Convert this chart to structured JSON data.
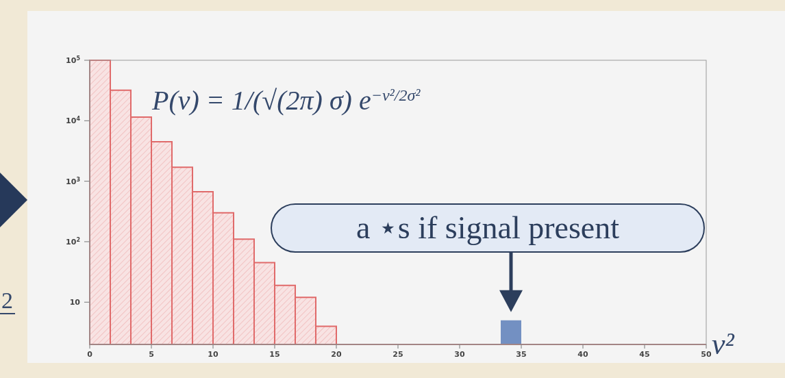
{
  "chart_data": {
    "type": "histogram",
    "xlabel": "v²",
    "log": true,
    "bins": [
      0,
      1.667,
      3.333,
      5,
      6.667,
      8.333,
      10,
      11.667,
      13.333,
      15,
      16.667,
      18.333,
      20,
      21.667,
      23.333,
      25,
      26.667,
      28.333,
      30,
      31.667,
      33.333,
      35,
      36.667,
      38.333,
      40,
      41.667,
      43.333,
      45,
      46.667,
      48.333,
      50
    ],
    "series": [
      {
        "color": "#e06a6a",
        "values": [
          100000,
          32000,
          11500,
          4500,
          1700,
          670,
          300,
          110,
          45,
          19,
          12,
          4,
          null,
          null,
          null,
          null,
          null,
          null,
          null,
          null,
          null,
          null,
          null,
          null,
          null,
          null,
          null,
          null,
          null,
          null
        ]
      },
      {
        "color": "#7390c2",
        "values": [
          null,
          null,
          null,
          null,
          null,
          null,
          null,
          null,
          null,
          null,
          null,
          null,
          null,
          null,
          null,
          null,
          null,
          null,
          null,
          null,
          5,
          null,
          null,
          null,
          null,
          null,
          null,
          null,
          null,
          null
        ]
      }
    ],
    "xlim": [
      0,
      50
    ],
    "xticks": [
      0,
      5,
      10,
      15,
      20,
      25,
      30,
      35,
      40,
      45,
      50
    ],
    "ylim": [
      2,
      100000
    ],
    "yticks": [
      {
        "value": 10,
        "label": "10"
      },
      {
        "value": 100,
        "label": "10$^{2}$"
      },
      {
        "value": 1000,
        "label": "10$^{3}$"
      },
      {
        "value": 10000,
        "label": "10$^{4}$"
      },
      {
        "value": 100000,
        "label": "10$^{5}$"
      }
    ],
    "annotations": [
      "P(v) = 1/(√(2π) σ) e$^{−v²/2σ²}$",
      "a ⋆s if signal present",
      "2"
    ]
  }
}
